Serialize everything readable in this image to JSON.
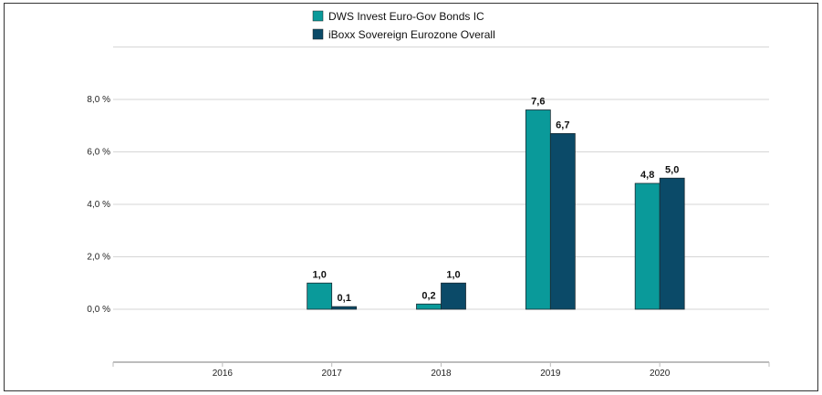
{
  "chart_data": {
    "type": "bar",
    "categories": [
      "2016",
      "2017",
      "2018",
      "2019",
      "2020"
    ],
    "series": [
      {
        "name": "DWS Invest Euro-Gov Bonds  IC",
        "color": "#0A9A9A",
        "values": [
          null,
          1.0,
          0.2,
          7.6,
          4.8
        ],
        "labels": [
          "",
          "1,0",
          "0,2",
          "7,6",
          "4,8"
        ]
      },
      {
        "name": "iBoxx Sovereign Eurozone Overall",
        "color": "#0B4A68",
        "values": [
          null,
          0.1,
          1.0,
          6.7,
          5.0
        ],
        "labels": [
          "",
          "0,1",
          "1,0",
          "6,7",
          "5,0"
        ]
      }
    ],
    "yticks": [
      0,
      2,
      4,
      6,
      8
    ],
    "ytick_labels": [
      "0,0 %",
      "2,0 %",
      "4,0 %",
      "6,0 %",
      "8,0 %"
    ],
    "ylim": [
      -2.0,
      10.0
    ],
    "grid": true,
    "legend_position": "top-center"
  }
}
